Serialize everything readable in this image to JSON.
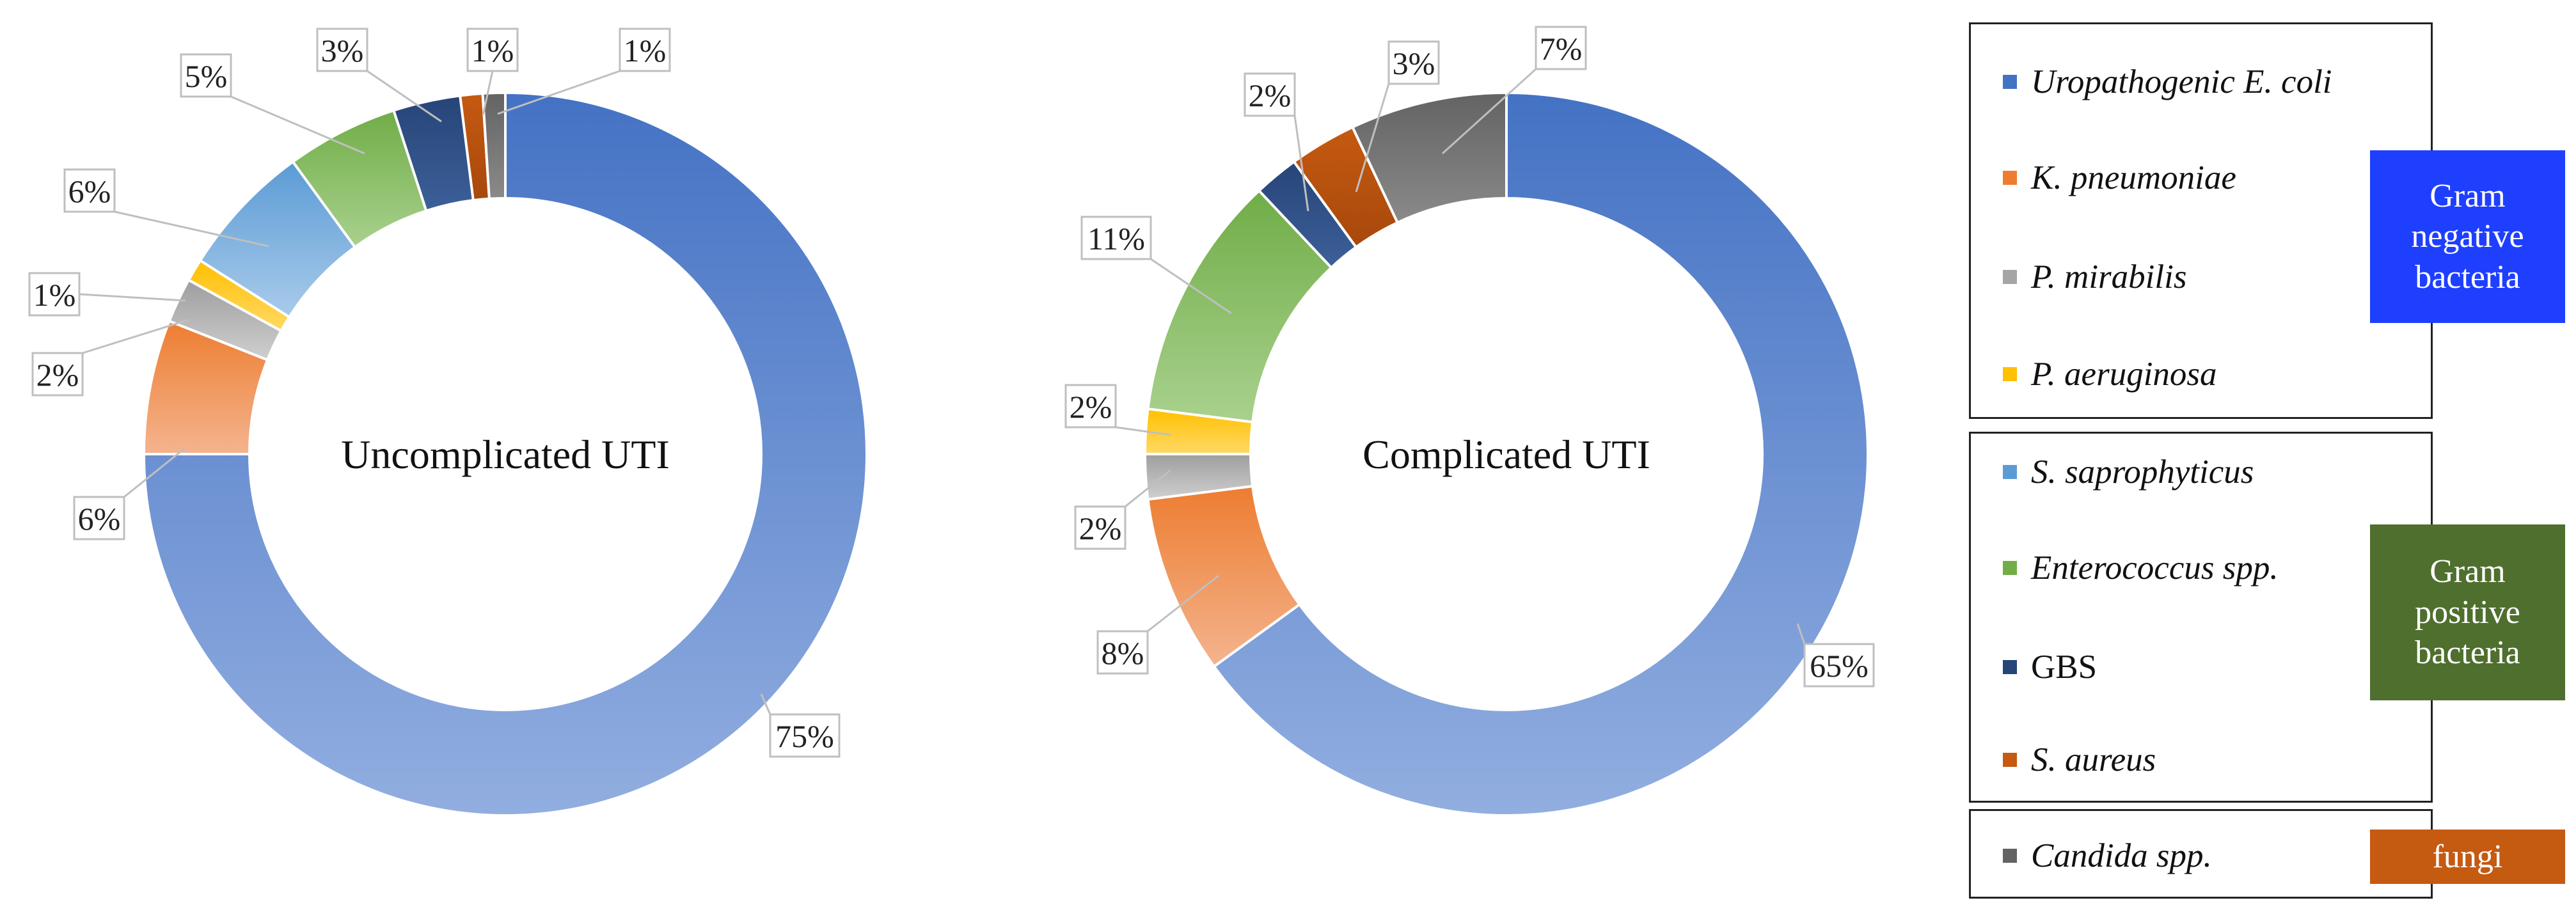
{
  "chart_data": [
    {
      "type": "donut",
      "center_label": "Uncomplicated UTI",
      "series": [
        {
          "name": "Uropathogenic E. coli",
          "value": 75,
          "label": "75%"
        },
        {
          "name": "K. pneumoniae",
          "value": 6,
          "label": "6%"
        },
        {
          "name": "P. mirabilis",
          "value": 2,
          "label": "2%"
        },
        {
          "name": "P. aeruginosa",
          "value": 1,
          "label": "1%"
        },
        {
          "name": "S. saprophyticus",
          "value": 6,
          "label": "6%"
        },
        {
          "name": "Enterococcus spp.",
          "value": 5,
          "label": "5%"
        },
        {
          "name": "GBS",
          "value": 3,
          "label": "3%"
        },
        {
          "name": "S. aureus",
          "value": 1,
          "label": "1%"
        },
        {
          "name": "Candida spp.",
          "value": 1,
          "label": "1%"
        }
      ]
    },
    {
      "type": "donut",
      "center_label": "Complicated UTI",
      "series": [
        {
          "name": "Uropathogenic E. coli",
          "value": 65,
          "label": "65%"
        },
        {
          "name": "K. pneumoniae",
          "value": 8,
          "label": "8%"
        },
        {
          "name": "P. mirabilis",
          "value": 2,
          "label": "2%"
        },
        {
          "name": "P. aeruginosa",
          "value": 2,
          "label": "2%"
        },
        {
          "name": "S. saprophyticus",
          "value": 0,
          "label": ""
        },
        {
          "name": "Enterococcus spp.",
          "value": 11,
          "label": "11%"
        },
        {
          "name": "GBS",
          "value": 2,
          "label": "2%"
        },
        {
          "name": "S. aureus",
          "value": 3,
          "label": "3%"
        },
        {
          "name": "Candida spp.",
          "value": 7,
          "label": "7%"
        }
      ]
    }
  ],
  "colors": {
    "Uropathogenic E. coli": [
      "#4472C4",
      "#92AEE0"
    ],
    "K. pneumoniae": [
      "#ED7D31",
      "#F4B48E"
    ],
    "P. mirabilis": [
      "#9E9E9E",
      "#CFCFCF"
    ],
    "P. aeruginosa": [
      "#FFC000",
      "#FFD966"
    ],
    "S. saprophyticus": [
      "#5B9BD5",
      "#A9CBEB"
    ],
    "Enterococcus spp.": [
      "#70AD47",
      "#A9D18E"
    ],
    "GBS": [
      "#264478",
      "#3D6099"
    ],
    "S. aureus": [
      "#C55A11",
      "#A8480C"
    ],
    "Candida spp.": [
      "#636363",
      "#8A8A8A"
    ]
  },
  "legend": {
    "groups": [
      {
        "tag": "Gram\nnegative\nbacteria",
        "tag_color": "#1F3FFF",
        "items": [
          {
            "label": "Uropathogenic E. coli",
            "italic": true,
            "color": "#4472C4"
          },
          {
            "label": "K. pneumoniae",
            "italic": true,
            "color": "#ED7D31"
          },
          {
            "label": "P. mirabilis",
            "italic": true,
            "color": "#A5A5A5"
          },
          {
            "label": "P. aeruginosa",
            "italic": true,
            "color": "#FFC000"
          }
        ]
      },
      {
        "tag": "Gram\npositive\nbacteria",
        "tag_color": "#4F6F2E",
        "items": [
          {
            "label": "S. saprophyticus",
            "italic": true,
            "color": "#5B9BD5"
          },
          {
            "label": "Enterococcus spp.",
            "italic": true,
            "color": "#70AD47"
          },
          {
            "label": "GBS",
            "italic": false,
            "color": "#264478"
          },
          {
            "label": "S. aureus",
            "italic": true,
            "color": "#C55A11"
          }
        ]
      },
      {
        "tag": "fungi",
        "tag_color": "#C55A11",
        "items": [
          {
            "label": "Candida spp.",
            "italic": true,
            "color": "#636363"
          }
        ]
      }
    ]
  }
}
